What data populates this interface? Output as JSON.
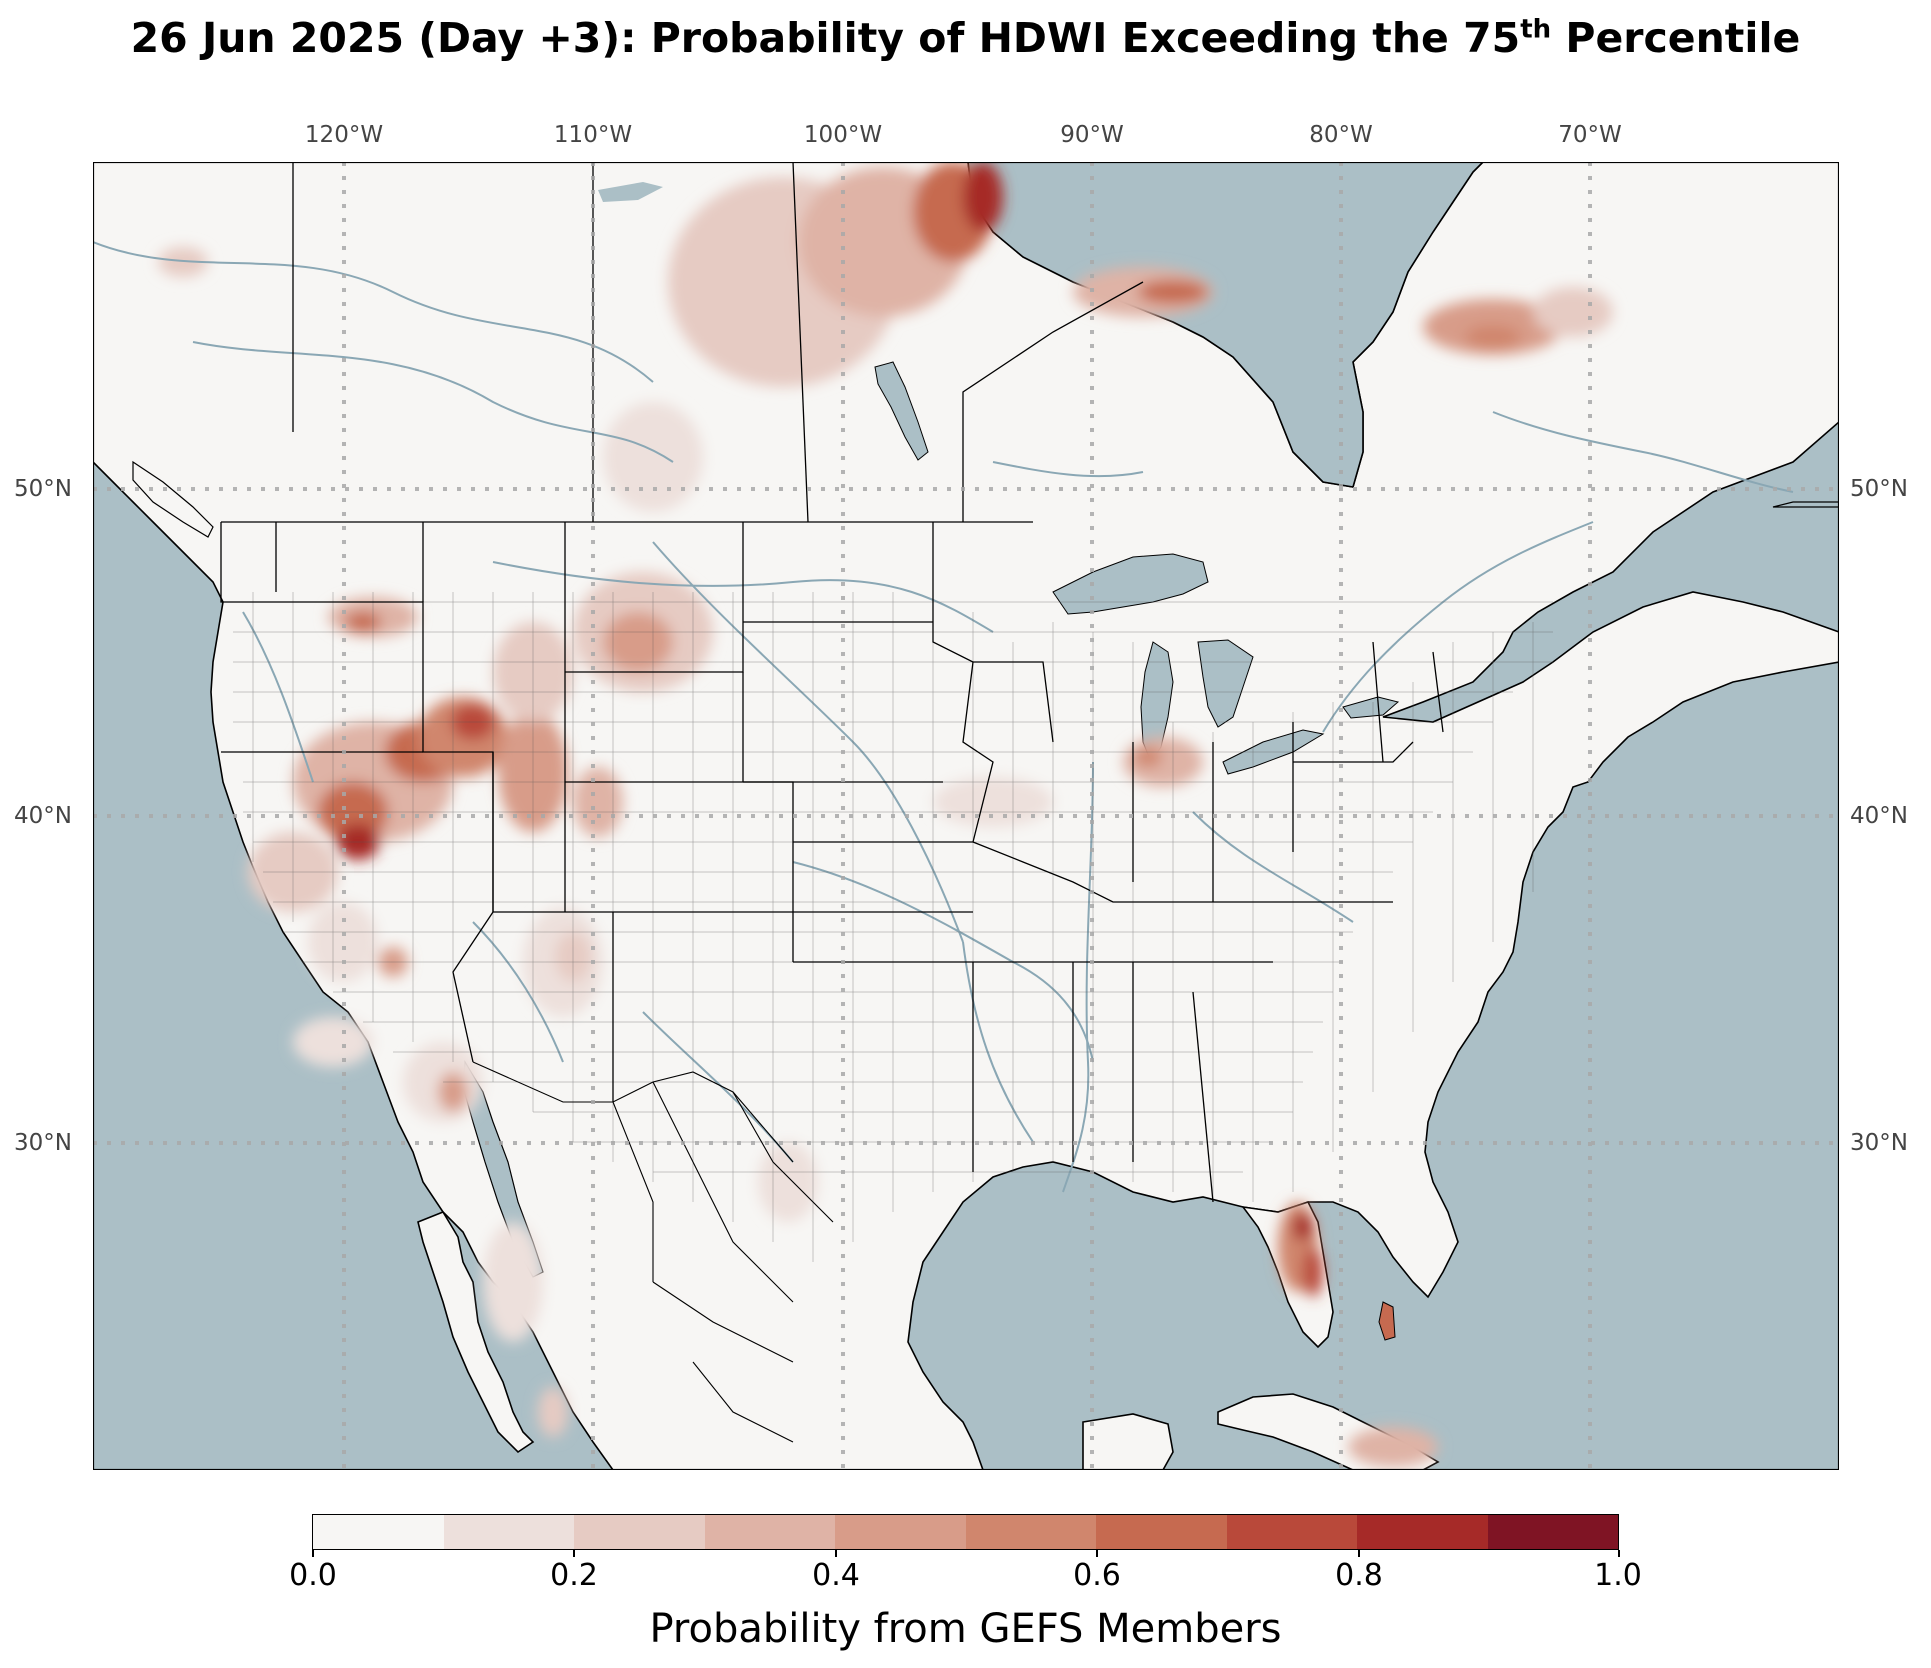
{
  "title": {
    "main": "26 Jun 2025 (Day +3): Probability of HDWI Exceeding the 75",
    "sup": "th",
    "tail": " Percentile"
  },
  "lon_labels": [
    "120°W",
    "110°W",
    "100°W",
    "90°W",
    "80°W",
    "70°W"
  ],
  "lat_labels": [
    "50°N",
    "40°N",
    "30°N"
  ],
  "colors": {
    "ocean": "#abbfc6",
    "land": "#f7f6f4",
    "border": "#000000",
    "county": "#555555",
    "river": "#8aa7b4",
    "grid": "#a8a8a8"
  },
  "colorbar": {
    "label": "Probability from GEFS Members",
    "ticks": [
      "0.0",
      "0.2",
      "0.4",
      "0.6",
      "0.8",
      "1.0"
    ],
    "bins": [
      "#f7f6f4",
      "#ede0dc",
      "#e6cbc3",
      "#dfb3a6",
      "#d89c89",
      "#d0866d",
      "#c66a50",
      "#b9493a",
      "#a62a28",
      "#7f1424"
    ]
  },
  "map_features": {
    "hotspots": [
      {
        "region": "Northern Nevada",
        "probability": 0.9
      },
      {
        "region": "Northeast Nevada / Utah border",
        "probability": 0.7
      },
      {
        "region": "Central Montana",
        "probability": 0.4
      },
      {
        "region": "Eastern Oregon / Idaho",
        "probability": 0.5
      },
      {
        "region": "Central Florida",
        "probability": 0.8
      },
      {
        "region": "Bahamas (Andros)",
        "probability": 0.8
      },
      {
        "region": "Hudson Bay west coast",
        "probability": 0.9
      },
      {
        "region": "Northern Quebec",
        "probability": 0.6
      },
      {
        "region": "Illinois / Indiana",
        "probability": 0.4
      },
      {
        "region": "Eastern Cuba",
        "probability": 0.4
      }
    ]
  }
}
